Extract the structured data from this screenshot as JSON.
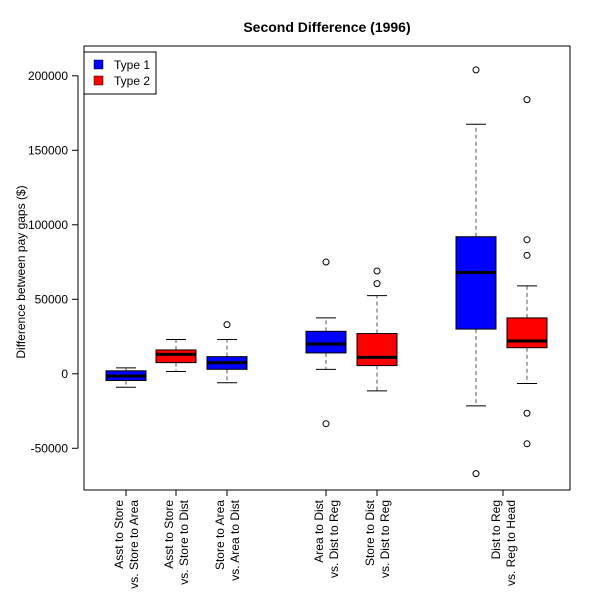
{
  "chart_data": {
    "type": "box",
    "title": "Second Difference (1996)",
    "ylabel": "Difference between pay gaps ($)",
    "ylim": [
      -78000,
      220000
    ],
    "yticks": [
      -50000,
      0,
      50000,
      100000,
      150000,
      200000
    ],
    "ytick_labels": [
      "-50000",
      "0",
      "50000",
      "100000",
      "150000",
      "200000"
    ],
    "legend": {
      "placement": "top-left",
      "entries": [
        {
          "label": "Type 1",
          "color": "#0000ff"
        },
        {
          "label": "Type 2",
          "color": "#ff0000"
        }
      ]
    },
    "boxes": [
      {
        "category": [
          "Asst to Store",
          "vs. Store to Area"
        ],
        "series": "Type 1",
        "color": "#0000ff",
        "whisker_low": -9000,
        "q1": -4500,
        "median": -1500,
        "q3": 2000,
        "whisker_high": 4000,
        "outliers": []
      },
      {
        "category": [
          "Asst to Store",
          "vs. Store to Dist"
        ],
        "series": "Type 2",
        "color": "#ff0000",
        "whisker_low": 1500,
        "q1": 7500,
        "median": 13000,
        "q3": 16000,
        "whisker_high": 23000,
        "outliers": []
      },
      {
        "category": [
          "Store to Area",
          "vs. Area to Dist"
        ],
        "series": "Type 1",
        "color": "#0000ff",
        "whisker_low": -6000,
        "q1": 3000,
        "median": 7500,
        "q3": 11500,
        "whisker_high": 23000,
        "outliers": [
          33000
        ]
      },
      {
        "category": [
          "Area to Dist",
          "vs. Dist to Reg"
        ],
        "series": "Type 1",
        "color": "#0000ff",
        "whisker_low": 3000,
        "q1": 14000,
        "median": 20000,
        "q3": 28500,
        "whisker_high": 37500,
        "outliers": [
          75000,
          -33500
        ]
      },
      {
        "category": [
          "Store to Dist",
          "vs. Dist to Reg"
        ],
        "series": "Type 2",
        "color": "#ff0000",
        "whisker_low": -11500,
        "q1": 5500,
        "median": 11000,
        "q3": 27000,
        "whisker_high": 52500,
        "outliers": [
          69000,
          60500
        ]
      },
      {
        "category": [
          "Dist to Reg",
          "vs. Reg to Head"
        ],
        "series": "Type 1",
        "color": "#0000ff",
        "whisker_low": -21500,
        "q1": 30000,
        "median": 68000,
        "q3": 92000,
        "whisker_high": 167500,
        "outliers": [
          204000,
          -67000
        ]
      },
      {
        "category": [
          "Dist to Reg",
          "vs. Reg to Head"
        ],
        "series": "Type 2",
        "color": "#ff0000",
        "whisker_low": -6500,
        "q1": 17500,
        "median": 22000,
        "q3": 37500,
        "whisker_high": 59000,
        "outliers": [
          184000,
          90000,
          79500,
          -26500,
          -47000
        ]
      }
    ],
    "x_tick_labels": [
      [
        "Asst to Store",
        "vs. Store to Area"
      ],
      [
        "Asst to Store",
        "vs. Store to Dist"
      ],
      [
        "Store to Area",
        "vs. Area to Dist"
      ],
      [
        "Area to Dist",
        "vs. Dist to Reg"
      ],
      [
        "Store to Dist",
        "vs. Dist to Reg"
      ],
      [
        "Dist to Reg",
        "vs. Reg to Head"
      ]
    ],
    "grid": false
  }
}
